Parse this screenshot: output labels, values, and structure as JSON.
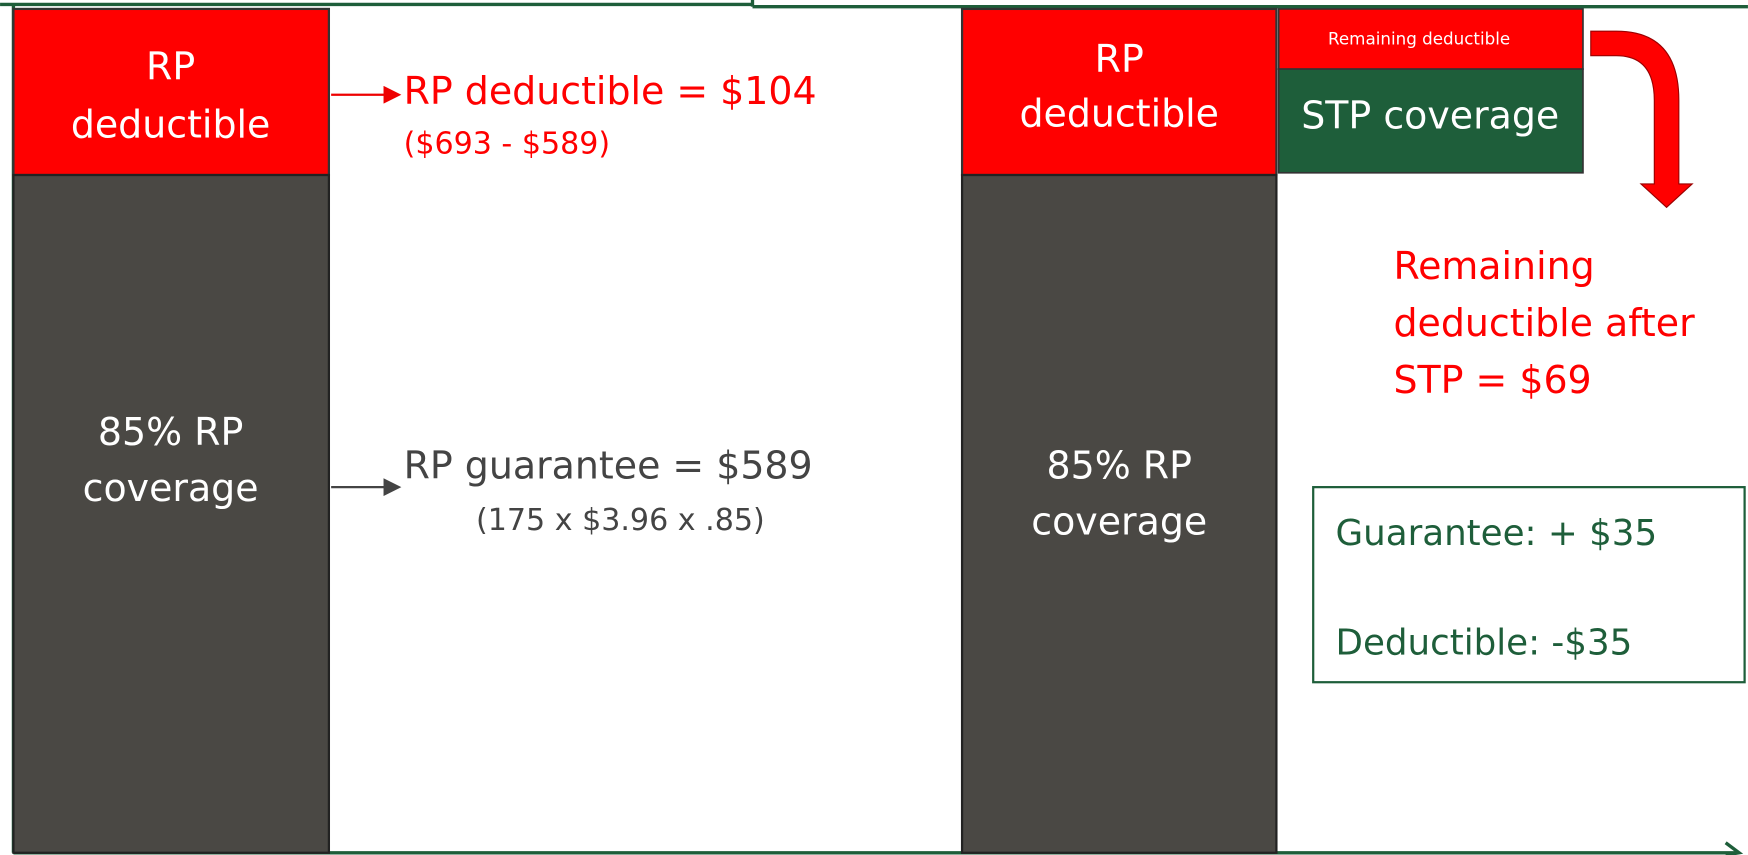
{
  "left": {
    "top_box": [
      "RP",
      "deductible"
    ],
    "bottom_box": [
      "85% RP",
      "coverage"
    ],
    "deductible_note": [
      "RP deductible = $104",
      "($693 - $589)"
    ],
    "guarantee_note": [
      "RP guarantee = $589",
      "(175 x $3.96 x .85)"
    ]
  },
  "right": {
    "top_box": [
      "RP",
      "deductible"
    ],
    "bottom_box": [
      "85% RP",
      "coverage"
    ],
    "remaining_box": "Remaining deductible",
    "stp_box": "STP coverage",
    "remaining_note": [
      "Remaining",
      "deductible after",
      "STP = $69"
    ],
    "change_box": [
      "Guarantee: + $35",
      "Deductible: -$35"
    ]
  }
}
